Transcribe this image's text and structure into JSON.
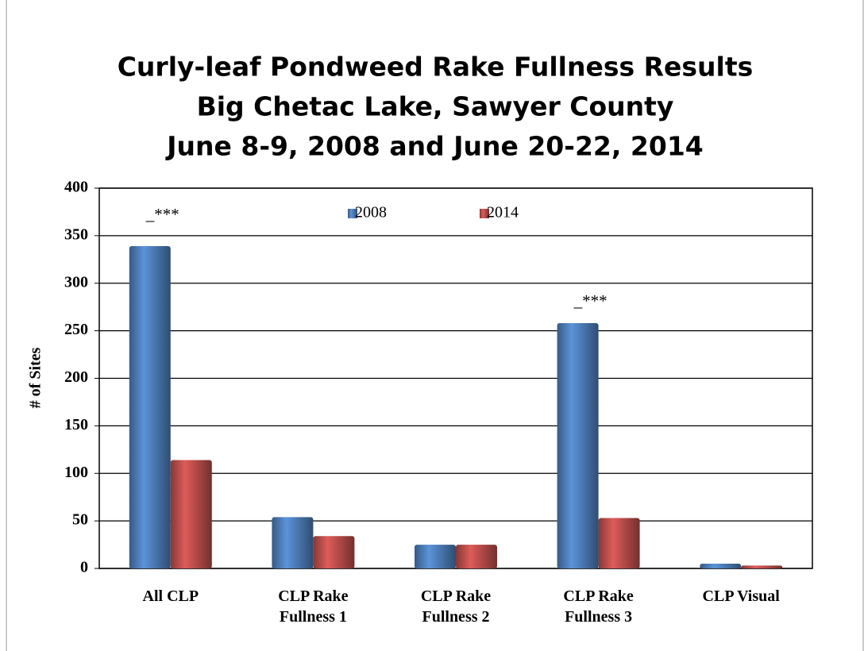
{
  "chart_data": {
    "type": "bar",
    "title": [
      "Curly-leaf Pondweed Rake Fullness Results",
      "Big Chetac Lake, Sawyer County",
      "June 8-9, 2008 and June 20-22, 2014"
    ],
    "y_label": "# of Sites",
    "categories": [
      "All CLP",
      "CLP Rake Fullness 1",
      "CLP Rake Fullness 2",
      "CLP Rake Fullness 3",
      "CLP Visual"
    ],
    "series": [
      {
        "name": "2008",
        "color": "#4f81bd",
        "values": [
          339,
          54,
          25,
          258,
          5
        ]
      },
      {
        "name": "2014",
        "color": "#c0504d",
        "values": [
          114,
          34,
          25,
          53,
          3
        ]
      }
    ],
    "annotations": [
      "_***",
      "_***"
    ],
    "ylim": [
      0,
      400
    ],
    "yticks": [
      0,
      50,
      100,
      150,
      200,
      250,
      300,
      350,
      400
    ],
    "grid": true,
    "legend": "top"
  }
}
